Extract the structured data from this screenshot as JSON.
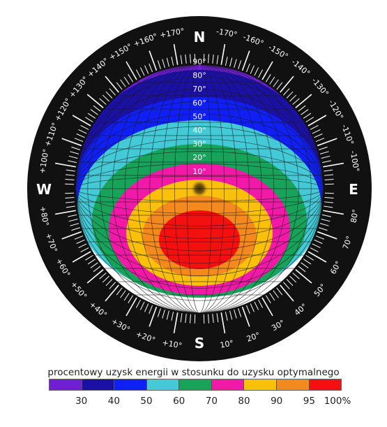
{
  "compass": {
    "north": "N",
    "south": "S",
    "west": "W",
    "east": "E"
  },
  "azimuth_labels_west": [
    "+10°",
    "+20°",
    "+30°",
    "+40°",
    "+50°",
    "+60°",
    "+70°",
    "+80°",
    "+100°",
    "+110°",
    "+120°",
    "+130°",
    "+140°",
    "+150°",
    "+160°",
    "+170°"
  ],
  "azimuth_labels_east": [
    "10°",
    "20°",
    "30°",
    "40°",
    "50°",
    "60°",
    "70°",
    "80°",
    "-100°",
    "-110°",
    "-120°",
    "-130°",
    "-140°",
    "-150°",
    "-160°",
    "-170°"
  ],
  "tilt_labels": [
    "90°",
    "80°",
    "70°",
    "60°",
    "50°",
    "40°",
    "30°",
    "20°",
    "10°"
  ],
  "caption": "procentowy uzysk energii w stosunku do uzysku optymalnego",
  "legend": {
    "colors": [
      "#6f1fd6",
      "#1b10a6",
      "#0f1ff5",
      "#44c9d6",
      "#17a35a",
      "#f219a8",
      "#fbc10a",
      "#f48a1e",
      "#f51010"
    ],
    "labels": [
      "30",
      "40",
      "50",
      "60",
      "70",
      "80",
      "90",
      "95",
      "100%"
    ]
  }
}
